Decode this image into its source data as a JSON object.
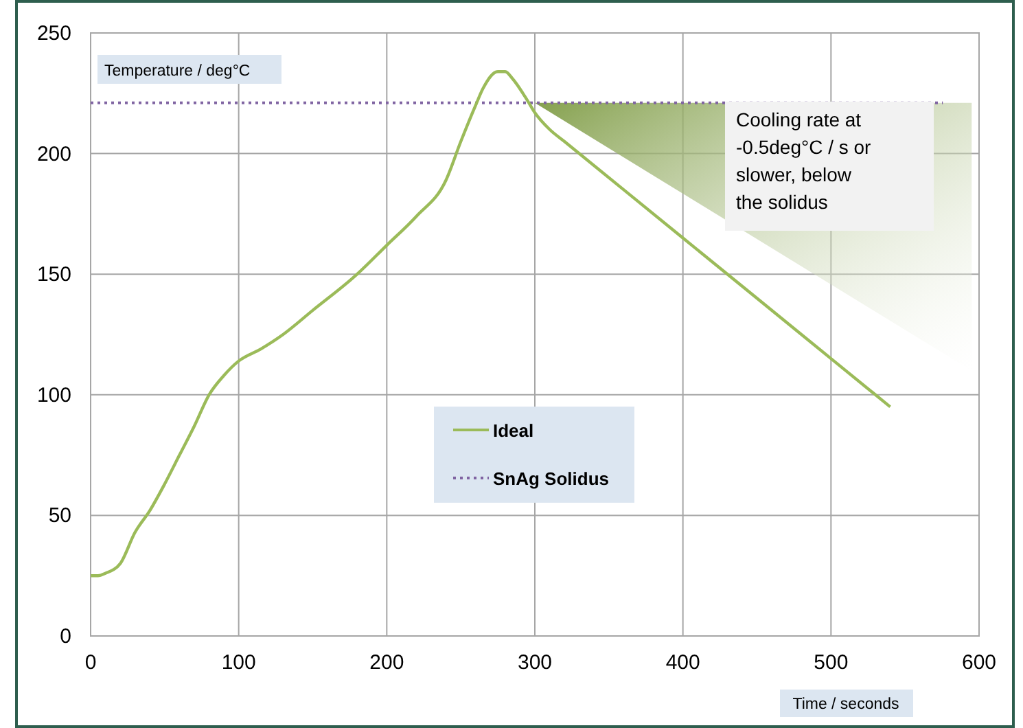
{
  "chart_data": {
    "type": "line",
    "xlabel": "Time / seconds",
    "ylabel": "Temperature / deg°C",
    "x": [
      0,
      5,
      10,
      20,
      30,
      40,
      50,
      60,
      70,
      80,
      90,
      100,
      115,
      130,
      150,
      180,
      200,
      220,
      240,
      250,
      260,
      265,
      275,
      280,
      285,
      295,
      300,
      310,
      320,
      400,
      500,
      540
    ],
    "series": [
      {
        "name": "Ideal",
        "color": "#9bbb59",
        "values": [
          25,
          25,
          26,
          30,
          43,
          52,
          63,
          75,
          87,
          100,
          108,
          114,
          119,
          125,
          135,
          150,
          162,
          174,
          189,
          205,
          220,
          227,
          234,
          234,
          231,
          222,
          217,
          210,
          205,
          165,
          115,
          95
        ]
      }
    ],
    "ref_lines": [
      {
        "axis": "y",
        "value": 221,
        "label": "SnAg Solidus",
        "color": "#8064a2",
        "line_style": "dotted"
      }
    ],
    "annotations": [
      "Cooling rate at -0.5deg°C / s or slower, below the solidus"
    ],
    "xlim": [
      0,
      600
    ],
    "ylim": [
      0,
      250
    ],
    "xticks": [
      0,
      100,
      200,
      300,
      400,
      500,
      600
    ],
    "yticks": [
      0,
      50,
      100,
      150,
      200,
      250
    ],
    "grid": true,
    "legend": "center",
    "marker": "none",
    "line_style": "solid"
  }
}
